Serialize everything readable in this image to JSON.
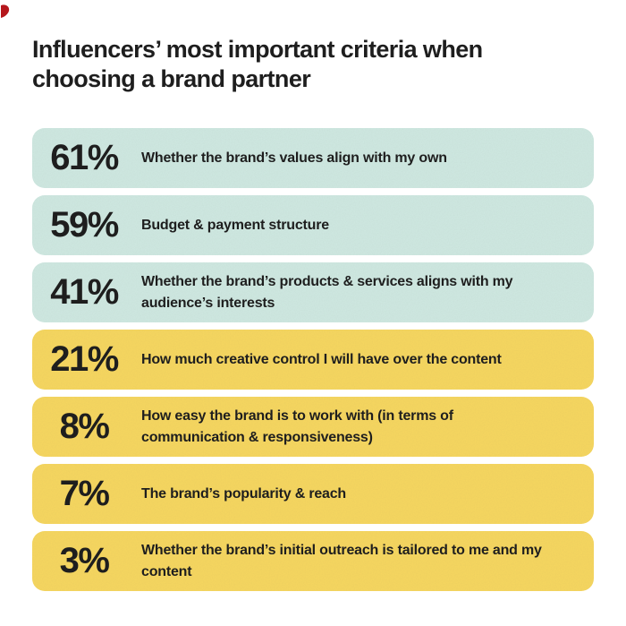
{
  "title": {
    "text": "Influencers’ most important criteria when choosing a brand partner",
    "lines": [
      "Influencers’ most important criteria when",
      "choosing a brand partner"
    ]
  },
  "colors": {
    "teal": "#cfe9e2",
    "yellow": "#f7d75f",
    "text": "#1e1e1e",
    "background": "#ffffff",
    "corner_mark": "#b5171c"
  },
  "rows": [
    {
      "percent": "61%",
      "color": "teal",
      "lines": [
        "Whether the brand’s values align with my own"
      ]
    },
    {
      "percent": "59%",
      "color": "teal",
      "lines": [
        "Budget & payment structure"
      ]
    },
    {
      "percent": "41%",
      "color": "teal",
      "lines": [
        "Whether the brand’s products & services aligns with my",
        "audience’s interests"
      ]
    },
    {
      "percent": "21%",
      "color": "yellow",
      "lines": [
        "How much creative control I will have over the content"
      ]
    },
    {
      "percent": "8%",
      "color": "yellow",
      "lines": [
        "How easy the brand is to work with (in terms of",
        "communication & responsiveness)"
      ]
    },
    {
      "percent": "7%",
      "color": "yellow",
      "lines": [
        "The brand’s popularity & reach"
      ]
    },
    {
      "percent": "3%",
      "color": "yellow",
      "lines": [
        "Whether the brand’s initial outreach is tailored to me and my",
        "content"
      ]
    }
  ],
  "chart_data": {
    "type": "bar",
    "title": "Influencers’ most important criteria when choosing a brand partner",
    "categories": [
      "Whether the brand’s values align with my own",
      "Budget & payment structure",
      "Whether the brand’s products & services aligns with my audience’s interests",
      "How much creative control I will have over the content",
      "How easy the brand is to work with (in terms of communication & responsiveness)",
      "The brand’s popularity & reach",
      "Whether the brand’s initial outreach is tailored to me and my content"
    ],
    "values": [
      61,
      59,
      41,
      21,
      8,
      7,
      3
    ],
    "unit": "%",
    "bar_colors": [
      "teal",
      "teal",
      "teal",
      "yellow",
      "yellow",
      "yellow",
      "yellow"
    ],
    "xlabel": "",
    "ylabel": "",
    "legend": false,
    "grid": false,
    "layout": "horizontal list of uniform rounded bars with value labels at left"
  }
}
